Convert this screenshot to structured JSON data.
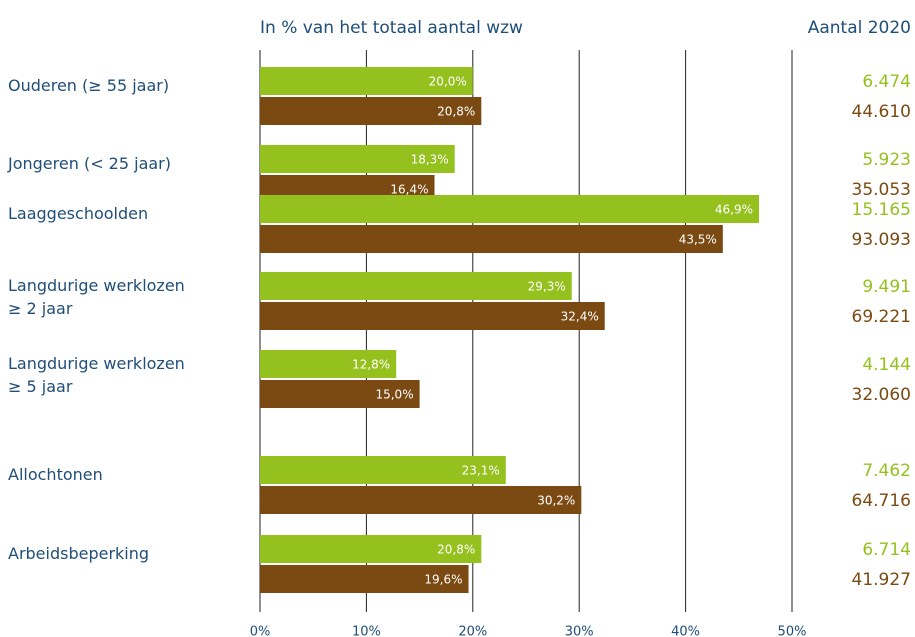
{
  "chart_data": {
    "type": "bar",
    "orientation": "horizontal",
    "subtitle": "In % van het totaal aantal wzw",
    "count_header": "Aantal 2020",
    "categories": [
      "Ouderen (≥ 55 jaar)",
      "Jongeren (< 25 jaar)",
      "Laaggeschoolden",
      "Langdurige werklozen\n≥ 2 jaar",
      "Langdurige werklozen\n≥ 5 jaar",
      "Allochtonen",
      "Arbeidsbeperking"
    ],
    "series": [
      {
        "color": "#95c11f",
        "values": [
          20.0,
          18.3,
          46.9,
          29.3,
          12.8,
          23.1,
          20.8
        ],
        "value_labels": [
          "20,0%",
          "18,3%",
          "46,9%",
          "29,3%",
          "12,8%",
          "23,1%",
          "20,8%"
        ],
        "counts": [
          6474,
          5923,
          15165,
          9491,
          4144,
          7462,
          6714
        ],
        "count_labels": [
          "6.474",
          "5.923",
          "15.165",
          "9.491",
          "4.144",
          "7.462",
          "6.714"
        ]
      },
      {
        "color": "#7b4a12",
        "values": [
          20.8,
          16.4,
          43.5,
          32.4,
          15.0,
          30.2,
          19.6
        ],
        "value_labels": [
          "20,8%",
          "16,4%",
          "43,5%",
          "32,4%",
          "15,0%",
          "30,2%",
          "19,6%"
        ],
        "counts": [
          44610,
          35053,
          93093,
          69221,
          32060,
          64716,
          41927
        ],
        "count_labels": [
          "44.610",
          "35.053",
          "93.093",
          "69.221",
          "32.060",
          "64.716",
          "41.927"
        ]
      }
    ],
    "xlim": [
      0,
      50
    ],
    "xticks": [
      {
        "value": 0,
        "label": "0%"
      },
      {
        "value": 10,
        "label": "10%"
      },
      {
        "value": 20,
        "label": "20%"
      },
      {
        "value": 30,
        "label": "30%"
      },
      {
        "value": 40,
        "label": "40%"
      },
      {
        "value": 50,
        "label": "50%"
      }
    ],
    "grid": true
  }
}
